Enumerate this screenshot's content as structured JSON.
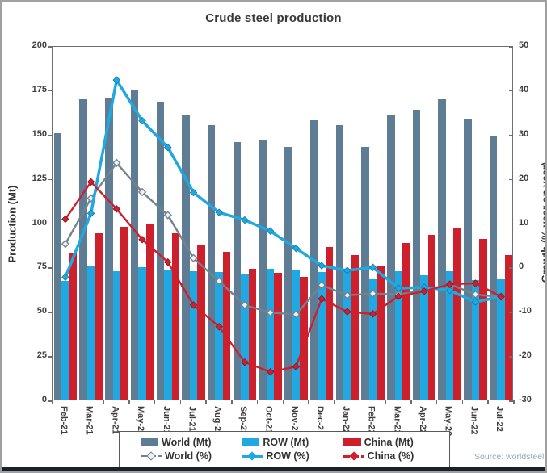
{
  "title": "Crude steel production",
  "source": "Source: worldsteel",
  "left_axis": {
    "title": "Production (Mt)",
    "ticks": [
      0,
      25,
      50,
      75,
      100,
      125,
      150,
      175,
      200
    ],
    "min": 0,
    "max": 200
  },
  "right_axis": {
    "title": "Growth (% year on year)",
    "ticks": [
      -30,
      -20,
      -10,
      0,
      10,
      20,
      30,
      40,
      50
    ],
    "min": -30,
    "max": 50
  },
  "legend": {
    "world_mt": "World (Mt)",
    "row_mt": "ROW (Mt)",
    "china_mt": "China (Mt)",
    "world_pct": "World (%)",
    "row_pct": "ROW (%)",
    "china_pct": "China (%)"
  },
  "colors": {
    "world_bar": "#5e7d94",
    "row_bar": "#1fa8e1",
    "china_bar": "#ce1f2d",
    "world_line": "#73828f",
    "row_line": "#1fa8e1",
    "china_line": "#ce1f2d",
    "axis": "#6e6e6e",
    "text": "#3f3f3f"
  },
  "chart_data": {
    "type": "bar",
    "subtype": "combo-bar-line",
    "title": "Crude steel production",
    "xlabel": "",
    "ylabel": "Production (Mt)",
    "ylabel_right": "Growth (% year on year)",
    "ylim_left": [
      0,
      200
    ],
    "ylim_right": [
      -30,
      50
    ],
    "grid": false,
    "legend_position": "bottom",
    "categories": [
      "Feb-21",
      "Mar-21",
      "Apr-21",
      "May-21",
      "Jun-21",
      "Jul-21",
      "Aug-21",
      "Sep-21",
      "Oct-21",
      "Nov-21",
      "Dec-21",
      "Jan-22",
      "Feb-22",
      "Mar-22",
      "Apr-22",
      "May-22",
      "Jun-22",
      "Jul-22"
    ],
    "series": [
      {
        "name": "World (Mt)",
        "type": "bar",
        "axis": "left",
        "color": "#5e7d94",
        "values": [
          150.5,
          169.5,
          170.0,
          174.5,
          167.9,
          160.5,
          155.0,
          145.5,
          146.5,
          142.5,
          157.5,
          155.0,
          142.7,
          160.5,
          163.5,
          169.5,
          158.1,
          148.5
        ]
      },
      {
        "name": "ROW (Mt)",
        "type": "bar",
        "axis": "left",
        "color": "#1fa8e1",
        "values": [
          67.2,
          75.5,
          72.5,
          74.5,
          73.5,
          72.5,
          72.0,
          70.5,
          74.0,
          73.5,
          72.0,
          73.0,
          68.0,
          72.5,
          70.0,
          72.5,
          67.5,
          68.0
        ]
      },
      {
        "name": "China (Mt)",
        "type": "bar",
        "axis": "left",
        "color": "#ce1f2d",
        "values": [
          83.0,
          94.0,
          97.5,
          99.5,
          93.9,
          86.8,
          83.2,
          73.8,
          71.6,
          69.3,
          86.2,
          81.7,
          75.0,
          88.3,
          92.8,
          96.6,
          90.7,
          81.4
        ]
      },
      {
        "name": "World (%)",
        "type": "line",
        "axis": "right",
        "color": "#73828f",
        "marker": "diamond-open",
        "values": [
          5.5,
          15.8,
          23.8,
          17.2,
          12.0,
          2.3,
          -2.9,
          -8.3,
          -10.0,
          -10.4,
          -3.8,
          -6.1,
          -5.7,
          -5.9,
          -5.0,
          -3.6,
          -5.9,
          -6.5
        ]
      },
      {
        "name": "ROW (%)",
        "type": "line",
        "axis": "right",
        "color": "#1fa8e1",
        "marker": "diamond",
        "values": [
          -2.0,
          12.4,
          42.5,
          33.3,
          27.3,
          17.1,
          12.6,
          10.9,
          8.4,
          4.5,
          0.6,
          -0.5,
          0.2,
          -4.5,
          -4.3,
          -5.0,
          -7.6,
          -6.4
        ]
      },
      {
        "name": "China (%)",
        "type": "line",
        "axis": "right",
        "color": "#ce1f2d",
        "marker": "diamond",
        "values": [
          11.1,
          19.5,
          13.4,
          6.5,
          1.4,
          -8.3,
          -13.2,
          -21.2,
          -23.4,
          -22.2,
          -6.9,
          -9.8,
          -10.3,
          -6.3,
          -5.2,
          -3.6,
          -3.4,
          -6.4
        ]
      }
    ]
  }
}
